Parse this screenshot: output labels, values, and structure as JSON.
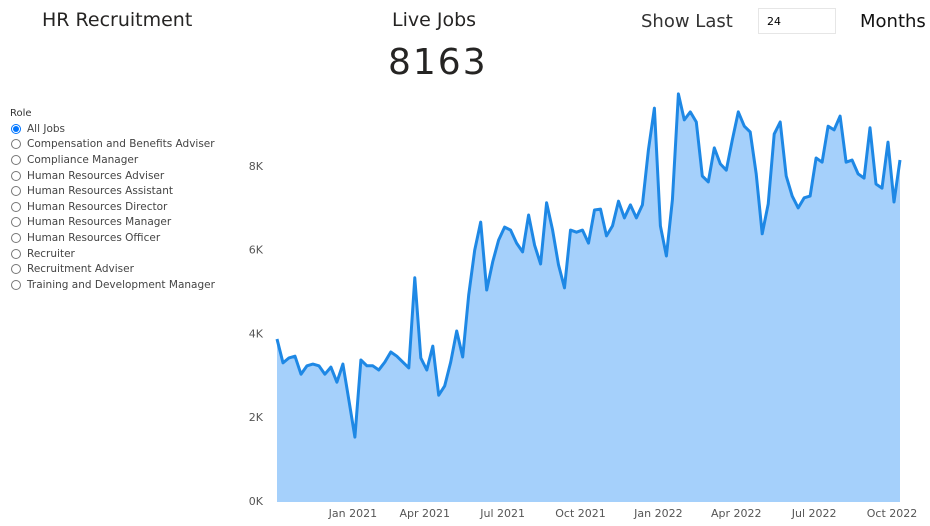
{
  "header": {
    "title": "HR Recruitment",
    "kpi_label": "Live Jobs",
    "kpi_value": "8163",
    "show_last_label": "Show Last",
    "show_last_value": "24",
    "show_last_unit": "Months"
  },
  "slicer": {
    "title": "Role",
    "selected": 0,
    "options": [
      "All Jobs",
      "Compensation and Benefits Adviser",
      "Compliance Manager",
      "Human Resources Adviser",
      "Human Resources Assistant",
      "Human Resources Director",
      "Human Resources Manager",
      "Human Resources Officer",
      "Recruiter",
      "Recruitment Adviser",
      "Training and Development Manager"
    ]
  },
  "chart_data": {
    "type": "area",
    "categories": [
      null,
      null,
      null,
      null,
      null,
      null,
      null,
      null,
      null,
      null,
      null,
      null,
      null,
      "Jan 2021",
      null,
      null,
      null,
      null,
      null,
      null,
      null,
      null,
      null,
      null,
      null,
      "Apr 2021",
      null,
      null,
      null,
      null,
      null,
      null,
      null,
      null,
      null,
      null,
      null,
      null,
      "Jul 2021",
      null,
      null,
      null,
      null,
      null,
      null,
      null,
      null,
      null,
      null,
      null,
      null,
      "Oct 2021",
      null,
      null,
      null,
      null,
      null,
      null,
      null,
      null,
      null,
      null,
      null,
      null,
      "Jan 2022",
      null,
      null,
      null,
      null,
      null,
      null,
      null,
      null,
      null,
      null,
      null,
      null,
      "Apr 2022",
      null,
      null,
      null,
      null,
      null,
      null,
      null,
      null,
      null,
      null,
      null,
      null,
      "Jul 2022",
      null,
      null,
      null,
      null,
      null,
      null,
      null,
      null,
      null,
      null,
      null,
      null,
      "Oct 2022",
      null
    ],
    "series": [
      {
        "name": "Live Jobs",
        "color": "#1e88e5",
        "fill": "#a5d0fb",
        "values": [
          3890,
          3320,
          3440,
          3480,
          3050,
          3250,
          3290,
          3250,
          3050,
          3220,
          2860,
          3290,
          2430,
          1550,
          3390,
          3250,
          3250,
          3150,
          3340,
          3580,
          3480,
          3340,
          3200,
          5350,
          3440,
          3150,
          3720,
          2550,
          2770,
          3340,
          4080,
          3460,
          4940,
          6010,
          6680,
          5060,
          5730,
          6250,
          6560,
          6490,
          6180,
          5970,
          6850,
          6130,
          5680,
          7140,
          6490,
          5660,
          5110,
          6490,
          6440,
          6490,
          6180,
          6970,
          6990,
          6350,
          6590,
          7180,
          6780,
          7090,
          6780,
          7090,
          8400,
          9400,
          6590,
          5870,
          7210,
          9740,
          9120,
          9310,
          9070,
          7780,
          7640,
          8450,
          8070,
          7920,
          8640,
          9310,
          8970,
          8830,
          7830,
          6400,
          7110,
          8780,
          9070,
          7780,
          7300,
          7020,
          7260,
          7300,
          8210,
          8110,
          8970,
          8880,
          9210,
          8110,
          8160,
          7830,
          7730,
          8930,
          7590,
          7490,
          8590,
          7160,
          8163
        ]
      }
    ],
    "ylim": [
      0,
      10000
    ],
    "yticks": [
      {
        "value": 0,
        "label": "0K"
      },
      {
        "value": 2000,
        "label": "2K"
      },
      {
        "value": 4000,
        "label": "4K"
      },
      {
        "value": 6000,
        "label": "6K"
      },
      {
        "value": 8000,
        "label": "8K"
      }
    ],
    "grid": false
  }
}
